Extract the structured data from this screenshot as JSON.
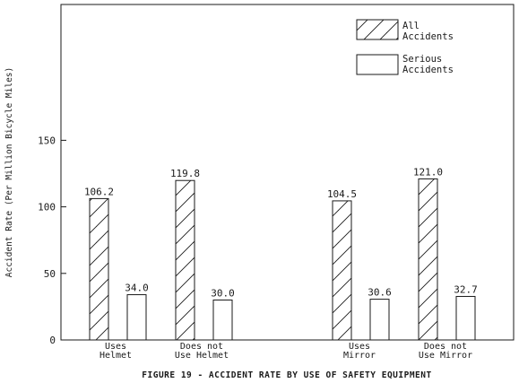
{
  "chart_data": {
    "type": "bar",
    "title": "FIGURE 19 - ACCIDENT RATE BY USE OF SAFETY EQUIPMENT",
    "ylabel": "Accident Rate (Per Million Bicycle Miles)",
    "xlabel": "",
    "ylim": [
      0,
      150
    ],
    "yticks": [
      "0",
      "50",
      "100",
      "150"
    ],
    "yticks_values": [
      0,
      50,
      100,
      150
    ],
    "grid": false,
    "legend_position": "top-right",
    "categories": [
      [
        "Uses",
        "Helmet"
      ],
      [
        "Does not",
        "Use Helmet"
      ],
      [
        "Uses",
        "Mirror"
      ],
      [
        "Does not",
        "Use Mirror"
      ]
    ],
    "series": [
      {
        "name_lines": [
          "All",
          "Accidents"
        ],
        "pattern": "hatched",
        "values": [
          106.2,
          119.8,
          104.5,
          121.0
        ],
        "labels": [
          "106.2",
          "119.8",
          "104.5",
          "121.0"
        ]
      },
      {
        "name_lines": [
          "Serious",
          "Accidents"
        ],
        "pattern": "open",
        "values": [
          34.0,
          30.0,
          30.6,
          32.7
        ],
        "labels": [
          "34.0",
          "30.0",
          "30.6",
          "32.7"
        ]
      }
    ]
  }
}
